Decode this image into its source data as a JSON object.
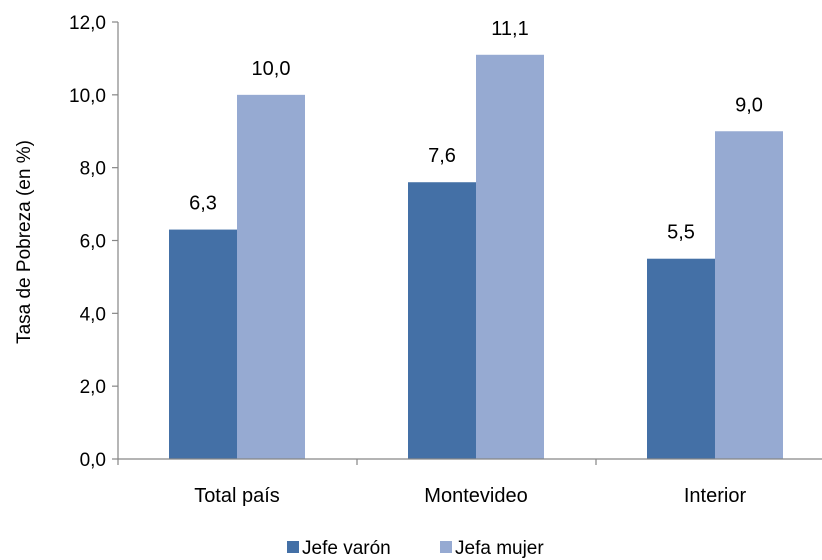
{
  "chart_data": {
    "type": "bar",
    "title": "",
    "xlabel": "",
    "ylabel": "Tasa de Pobreza (en %)",
    "ylim": [
      0,
      12
    ],
    "yticks": [
      "0,0",
      "2,0",
      "4,0",
      "6,0",
      "8,0",
      "10,0",
      "12,0"
    ],
    "ytick_values": [
      0,
      2,
      4,
      6,
      8,
      10,
      12
    ],
    "categories": [
      "Total país",
      "Montevideo",
      "Interior"
    ],
    "series": [
      {
        "name": "Jefe varón",
        "values": [
          6.3,
          7.6,
          5.5
        ],
        "labels": [
          "6,3",
          "7,6",
          "5,5"
        ],
        "color": "#4470A6"
      },
      {
        "name": "Jefa mujer",
        "values": [
          10.0,
          11.1,
          9.0
        ],
        "labels": [
          "10,0",
          "11,1",
          "9,0"
        ],
        "color": "#96AAD2"
      }
    ],
    "grid": false,
    "legend_position": "bottom"
  }
}
